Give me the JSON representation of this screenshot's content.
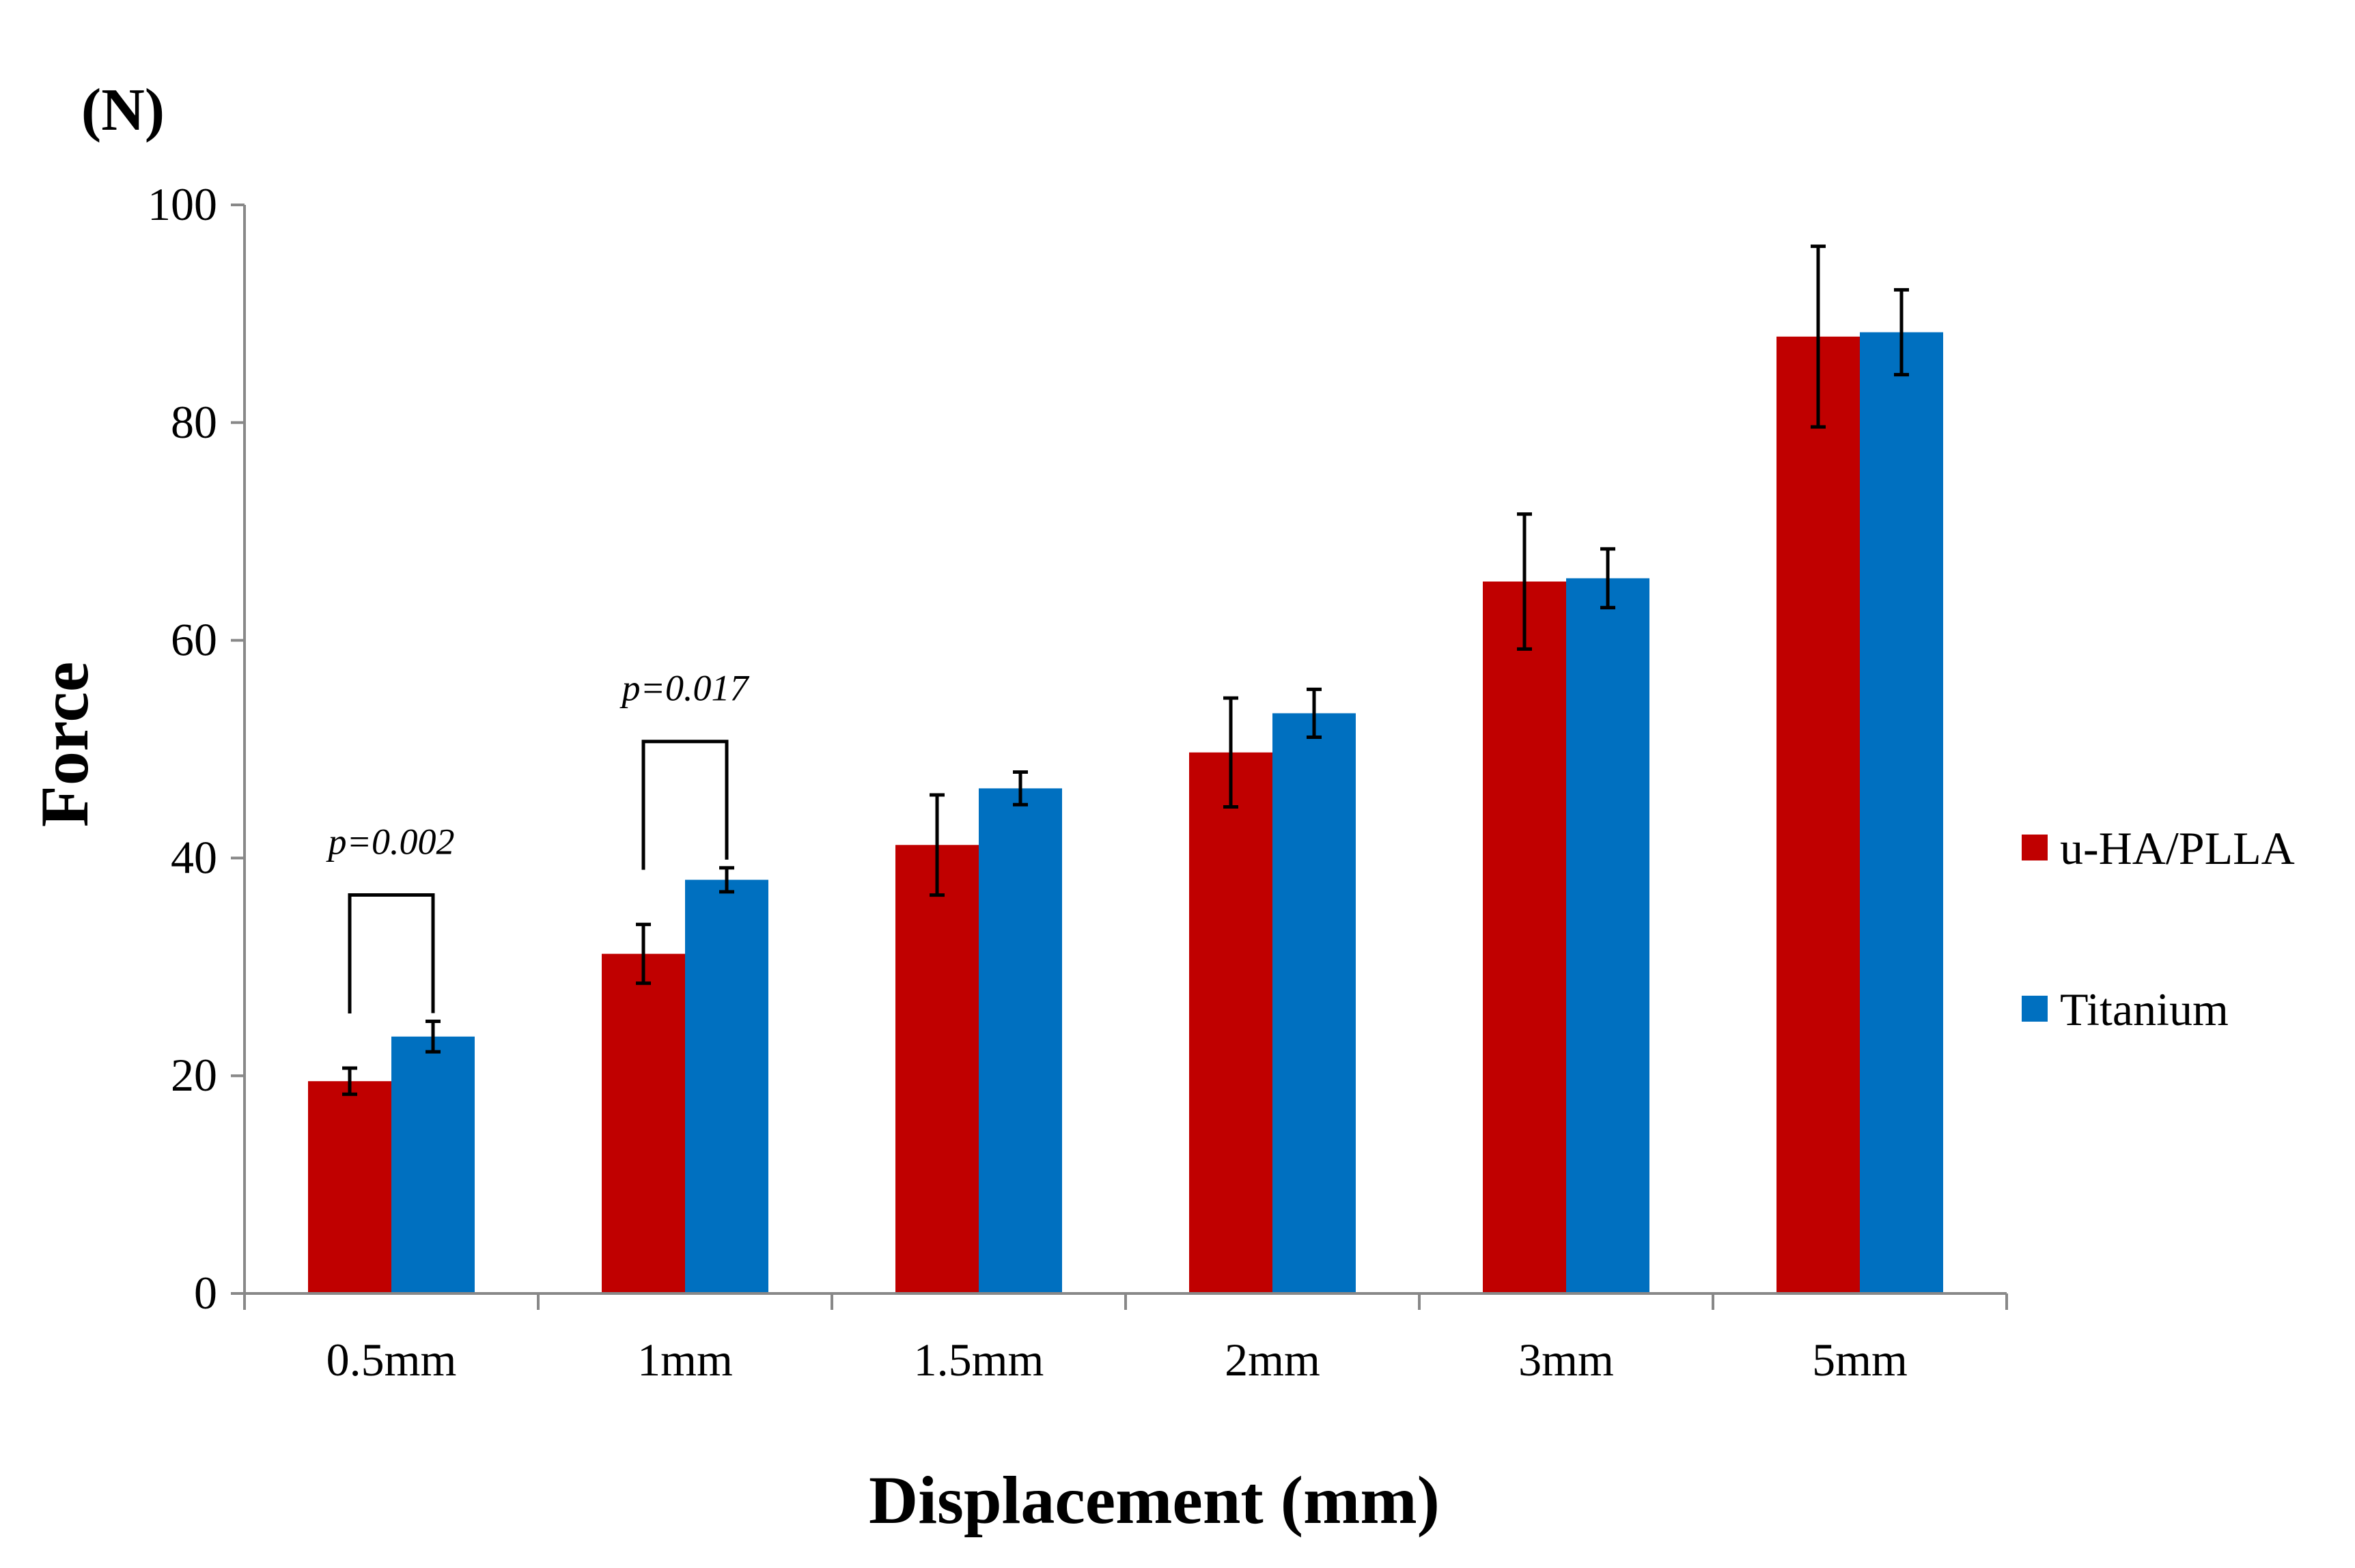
{
  "chart_data": {
    "type": "bar",
    "title": "",
    "unit_label": "(N)",
    "ylabel": "Force",
    "xlabel": "Displacement (mm)",
    "ylim": [
      0,
      100
    ],
    "yticks": [
      0,
      20,
      40,
      60,
      80,
      100
    ],
    "grid": false,
    "legend_position": "right",
    "categories": [
      "0.5mm",
      "1mm",
      "1.5mm",
      "2mm",
      "3mm",
      "5mm"
    ],
    "series": [
      {
        "name": "u-HA/PLLA",
        "color": "#C00000",
        "values": [
          19.5,
          31.2,
          41.2,
          49.7,
          65.4,
          87.9
        ],
        "errors": [
          1.2,
          2.7,
          4.6,
          5.0,
          6.2,
          8.3
        ]
      },
      {
        "name": "Titanium",
        "color": "#0070C0",
        "values": [
          23.6,
          38.0,
          46.4,
          53.3,
          65.7,
          88.3
        ],
        "errors": [
          1.4,
          1.1,
          1.5,
          2.2,
          2.7,
          3.9
        ]
      }
    ],
    "annotations": [
      {
        "text": "p=0.002",
        "category_index": 0
      },
      {
        "text": "p=0.017",
        "category_index": 1
      }
    ]
  }
}
